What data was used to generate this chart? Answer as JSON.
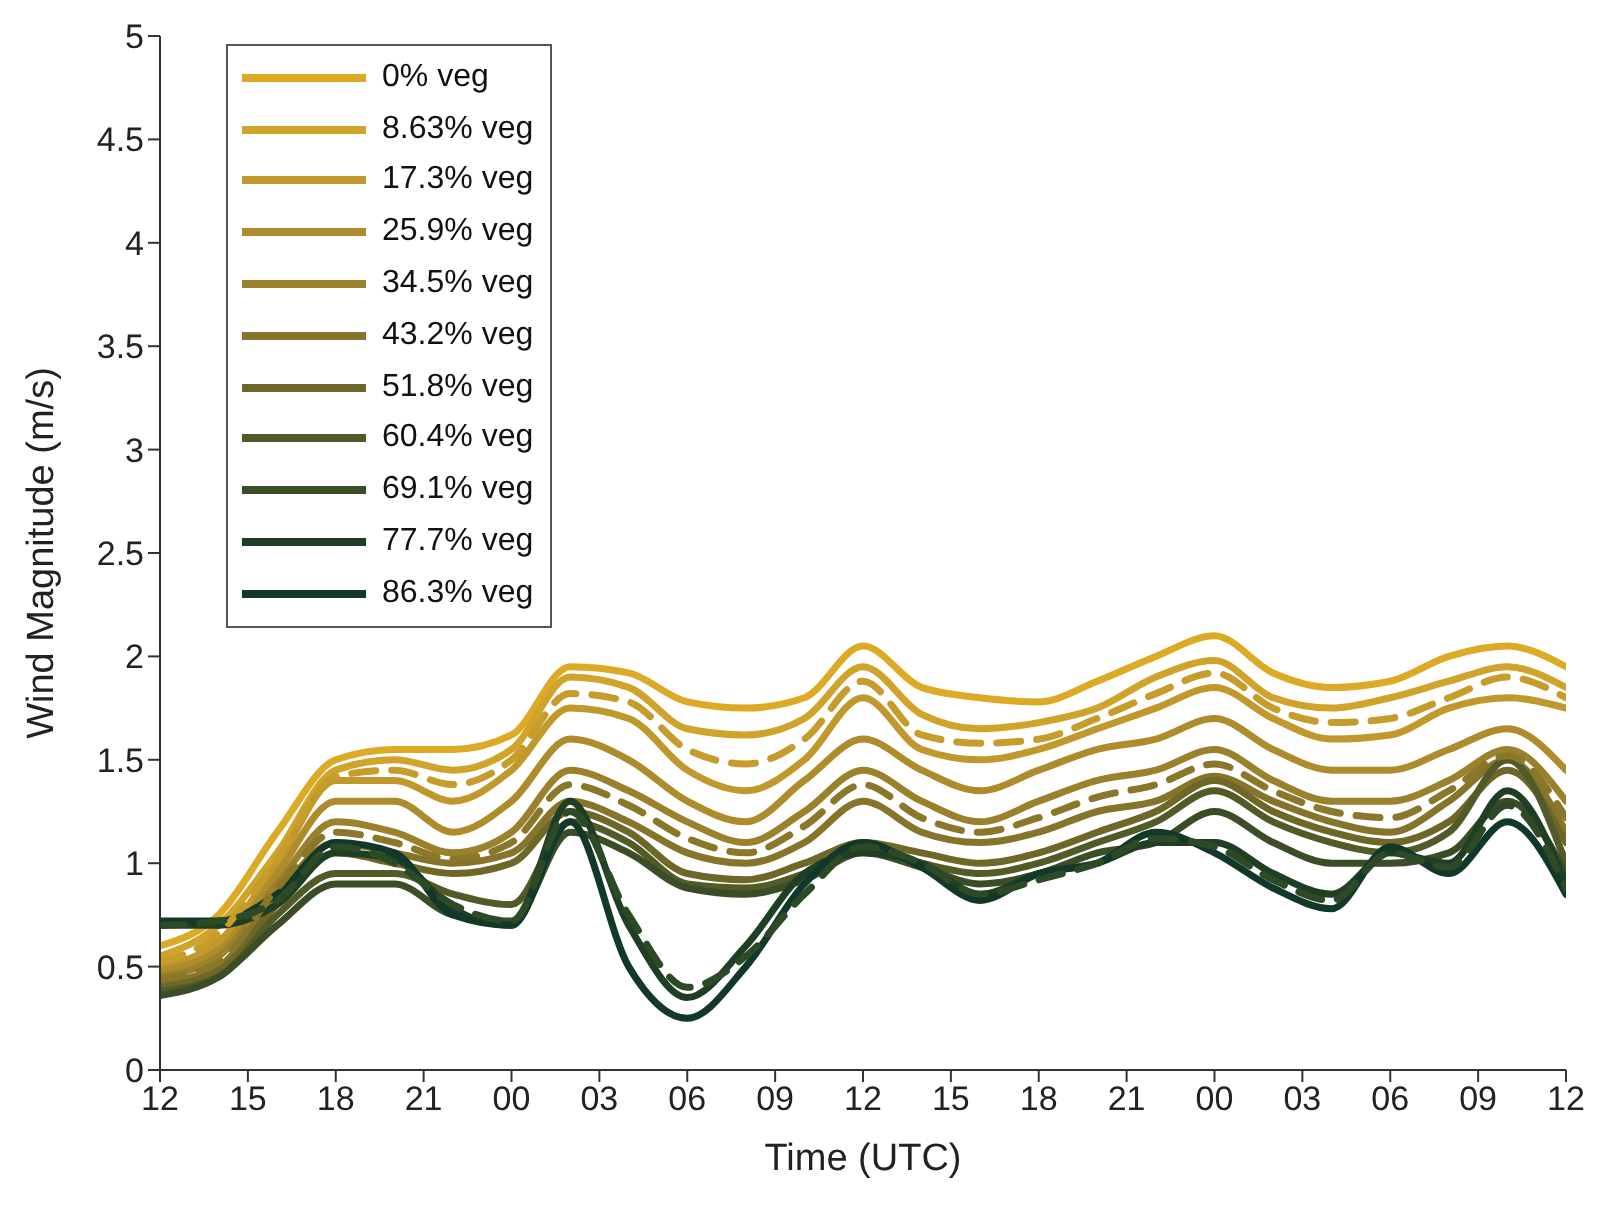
{
  "chart_data": {
    "type": "line",
    "xlabel": "Time (UTC)",
    "ylabel": "Wind Magnitude (m/s)",
    "x": [
      12,
      14,
      16,
      18,
      20,
      22,
      24,
      26,
      28,
      30,
      32,
      34,
      36,
      38,
      40,
      42,
      44,
      46,
      48,
      50,
      52,
      54,
      56,
      58,
      60
    ],
    "xlim": [
      12,
      60
    ],
    "ylim": [
      0,
      5
    ],
    "xticks": [
      {
        "value": 12,
        "label": "12"
      },
      {
        "value": 15,
        "label": "15"
      },
      {
        "value": 18,
        "label": "18"
      },
      {
        "value": 21,
        "label": "21"
      },
      {
        "value": 24,
        "label": "00"
      },
      {
        "value": 27,
        "label": "03"
      },
      {
        "value": 30,
        "label": "06"
      },
      {
        "value": 33,
        "label": "09"
      },
      {
        "value": 36,
        "label": "12"
      },
      {
        "value": 39,
        "label": "15"
      },
      {
        "value": 42,
        "label": "18"
      },
      {
        "value": 45,
        "label": "21"
      },
      {
        "value": 48,
        "label": "00"
      },
      {
        "value": 51,
        "label": "03"
      },
      {
        "value": 54,
        "label": "06"
      },
      {
        "value": 57,
        "label": "09"
      },
      {
        "value": 60,
        "label": "12"
      }
    ],
    "yticks": [
      0,
      0.5,
      1,
      1.5,
      2,
      2.5,
      3,
      3.5,
      4,
      4.5,
      5
    ],
    "grid": false,
    "legend": "top left",
    "marker": "none",
    "line_style": "solid",
    "series": [
      {
        "name": "0% veg",
        "color": "#dcaa24",
        "values": [
          0.6,
          0.75,
          1.15,
          1.5,
          1.55,
          1.55,
          1.62,
          1.95,
          1.92,
          1.78,
          1.75,
          1.8,
          2.05,
          1.85,
          1.8,
          1.78,
          1.88,
          2.0,
          2.1,
          1.92,
          1.85,
          1.88,
          2.0,
          2.05,
          1.95
        ]
      },
      {
        "name": "8.63% veg",
        "color": "#d0a32a",
        "values": [
          0.55,
          0.7,
          1.05,
          1.45,
          1.5,
          1.45,
          1.55,
          1.9,
          1.85,
          1.65,
          1.62,
          1.7,
          1.95,
          1.72,
          1.65,
          1.68,
          1.75,
          1.9,
          1.98,
          1.8,
          1.75,
          1.8,
          1.88,
          1.95,
          1.85
        ]
      },
      {
        "name": "17.3% veg",
        "color": "#c0982b",
        "values": [
          0.5,
          0.62,
          1.0,
          1.4,
          1.4,
          1.3,
          1.45,
          1.75,
          1.7,
          1.45,
          1.35,
          1.5,
          1.8,
          1.55,
          1.5,
          1.55,
          1.65,
          1.75,
          1.85,
          1.7,
          1.6,
          1.62,
          1.75,
          1.8,
          1.75
        ]
      },
      {
        "name": "25.9% veg",
        "color": "#ae8c2c",
        "values": [
          0.48,
          0.58,
          0.95,
          1.3,
          1.3,
          1.15,
          1.3,
          1.6,
          1.5,
          1.3,
          1.2,
          1.4,
          1.6,
          1.45,
          1.35,
          1.45,
          1.55,
          1.6,
          1.7,
          1.55,
          1.45,
          1.45,
          1.55,
          1.65,
          1.45
        ]
      },
      {
        "name": "34.5% veg",
        "color": "#9b812c",
        "values": [
          0.45,
          0.55,
          0.9,
          1.2,
          1.15,
          1.05,
          1.15,
          1.45,
          1.35,
          1.2,
          1.1,
          1.25,
          1.45,
          1.3,
          1.2,
          1.3,
          1.4,
          1.45,
          1.55,
          1.4,
          1.3,
          1.3,
          1.4,
          1.55,
          1.3
        ]
      },
      {
        "name": "43.2% veg",
        "color": "#857429",
        "values": [
          0.42,
          0.5,
          0.85,
          1.1,
          1.05,
          1.0,
          1.05,
          1.3,
          1.2,
          1.05,
          1.0,
          1.1,
          1.3,
          1.15,
          1.1,
          1.15,
          1.25,
          1.3,
          1.42,
          1.3,
          1.2,
          1.15,
          1.3,
          1.5,
          1.15
        ]
      },
      {
        "name": "51.8% veg",
        "color": "#6e6727",
        "values": [
          0.4,
          0.48,
          0.8,
          1.05,
          1.0,
          0.95,
          1.0,
          1.25,
          1.15,
          0.95,
          0.92,
          1.0,
          1.1,
          1.05,
          1.0,
          1.05,
          1.15,
          1.25,
          1.4,
          1.25,
          1.15,
          1.1,
          1.2,
          1.45,
          1.1
        ]
      },
      {
        "name": "60.4% veg",
        "color": "#525a27",
        "values": [
          0.38,
          0.45,
          0.75,
          0.95,
          0.95,
          0.85,
          0.8,
          1.2,
          1.1,
          0.9,
          0.88,
          0.95,
          1.08,
          1.0,
          0.95,
          1.0,
          1.1,
          1.2,
          1.35,
          1.2,
          1.1,
          1.05,
          1.15,
          1.5,
          1.0
        ]
      },
      {
        "name": "69.1% veg",
        "color": "#3b4d26",
        "values": [
          0.36,
          0.45,
          0.7,
          0.9,
          0.9,
          0.75,
          0.72,
          1.15,
          1.05,
          0.88,
          0.85,
          0.92,
          1.05,
          0.98,
          0.9,
          0.95,
          1.05,
          1.1,
          1.25,
          1.1,
          1.0,
          1.0,
          1.05,
          1.3,
          0.95
        ]
      },
      {
        "name": "77.7% veg",
        "color": "#1f3f25",
        "values": [
          0.7,
          0.7,
          0.8,
          1.05,
          1.02,
          0.78,
          0.7,
          1.3,
          0.7,
          0.35,
          0.6,
          0.95,
          1.05,
          1.0,
          0.85,
          0.95,
          1.0,
          1.1,
          1.1,
          0.95,
          0.85,
          1.05,
          1.0,
          1.35,
          0.9
        ]
      },
      {
        "name": "86.3% veg",
        "color": "#12382a",
        "values": [
          0.72,
          0.72,
          0.85,
          1.1,
          1.05,
          0.75,
          0.7,
          1.2,
          0.5,
          0.25,
          0.5,
          0.9,
          1.1,
          0.98,
          0.82,
          0.95,
          1.0,
          1.15,
          1.05,
          0.88,
          0.78,
          1.08,
          0.95,
          1.2,
          0.85
        ]
      },
      {
        "color": "#c69c2a",
        "line_style": "dashed",
        "values": [
          0.52,
          0.66,
          1.02,
          1.42,
          1.45,
          1.38,
          1.5,
          1.82,
          1.78,
          1.55,
          1.48,
          1.6,
          1.88,
          1.62,
          1.58,
          1.6,
          1.7,
          1.82,
          1.92,
          1.75,
          1.68,
          1.7,
          1.8,
          1.9,
          1.8
        ]
      },
      {
        "color": "#8a772a",
        "line_style": "dashed",
        "values": [
          0.44,
          0.52,
          0.88,
          1.15,
          1.1,
          1.02,
          1.1,
          1.38,
          1.28,
          1.12,
          1.05,
          1.18,
          1.38,
          1.22,
          1.15,
          1.22,
          1.32,
          1.38,
          1.48,
          1.35,
          1.25,
          1.22,
          1.35,
          1.52,
          1.22
        ]
      },
      {
        "color": "#2c4a26",
        "line_style": "dashed",
        "values": [
          0.7,
          0.72,
          0.82,
          1.08,
          1.0,
          0.8,
          0.72,
          1.25,
          0.75,
          0.4,
          0.55,
          0.85,
          1.08,
          1.0,
          0.85,
          0.92,
          1.0,
          1.12,
          1.08,
          0.92,
          0.82,
          1.05,
          0.98,
          1.28,
          0.88
        ]
      }
    ]
  }
}
